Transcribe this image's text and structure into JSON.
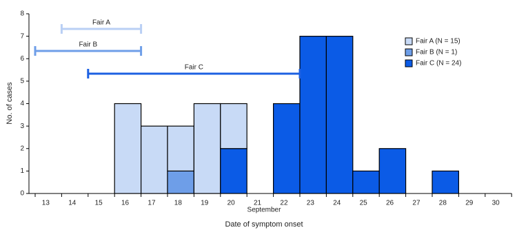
{
  "chart_data": {
    "type": "stacked_histogram",
    "categories": [
      "13",
      "14",
      "15",
      "16",
      "17",
      "18",
      "19",
      "20",
      "21",
      "22",
      "23",
      "24",
      "25",
      "26",
      "27",
      "28",
      "29",
      "30"
    ],
    "x_group_label": "September",
    "xlabel": "Date of symptom onset",
    "ylabel": "No. of cases",
    "ylim": [
      0,
      8
    ],
    "yticks": [
      0,
      1,
      2,
      3,
      4,
      5,
      6,
      7,
      8
    ],
    "stack_order": [
      2,
      1,
      0
    ],
    "series": [
      {
        "name": "Fair A (N = 15)",
        "color": "#c8daf6",
        "values": [
          0,
          0,
          0,
          4,
          3,
          2,
          4,
          2,
          0,
          0,
          0,
          0,
          0,
          0,
          0,
          0,
          0,
          0
        ]
      },
      {
        "name": "Fair B (N = 1)",
        "color": "#6e9ee8",
        "values": [
          0,
          0,
          0,
          0,
          0,
          1,
          0,
          0,
          0,
          0,
          0,
          0,
          0,
          0,
          0,
          0,
          0,
          0
        ]
      },
      {
        "name": "Fair C (N = 24)",
        "color": "#0b5be6",
        "values": [
          0,
          0,
          0,
          0,
          0,
          0,
          0,
          2,
          0,
          4,
          7,
          7,
          1,
          2,
          0,
          1,
          0,
          0
        ]
      }
    ],
    "ranges": [
      {
        "label": "Fair A",
        "start": "14",
        "end": "17",
        "color": "#b9cff4"
      },
      {
        "label": "Fair B",
        "start": "13",
        "end": "17",
        "color": "#6e9ee8"
      },
      {
        "label": "Fair C",
        "start": "15",
        "end": "23",
        "color": "#1c60e2"
      }
    ]
  }
}
